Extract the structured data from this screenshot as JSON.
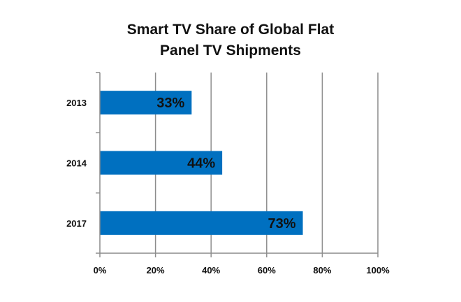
{
  "chart_data": {
    "type": "bar",
    "orientation": "horizontal",
    "title_lines": [
      "Smart TV Share of Global Flat",
      "Panel TV Shipments"
    ],
    "categories": [
      "2013",
      "2014",
      "2017"
    ],
    "values": [
      33,
      44,
      73
    ],
    "data_labels": [
      "33%",
      "44%",
      "73%"
    ],
    "x_ticks": [
      "0%",
      "20%",
      "40%",
      "60%",
      "80%",
      "100%"
    ],
    "xlim": [
      0,
      100
    ],
    "grid": "vertical",
    "legend": "none",
    "bar_color": "#0070C0",
    "grid_color": "#8c8c8c"
  }
}
